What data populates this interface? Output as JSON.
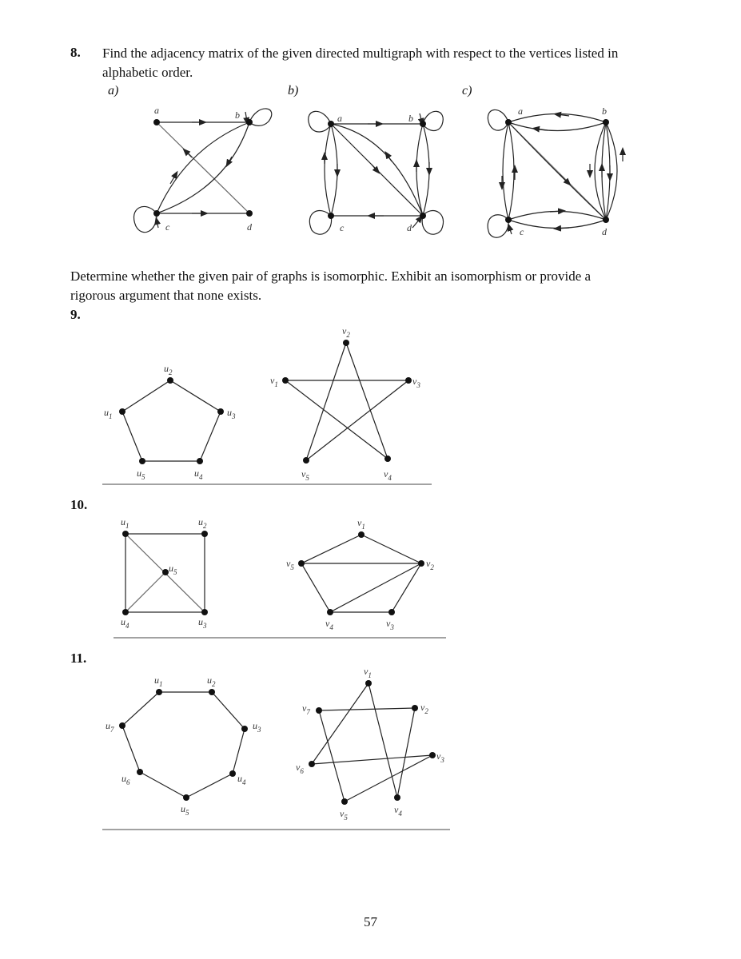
{
  "problems": {
    "p8": {
      "number": "8.",
      "line1": "Find the adjacency matrix of the given directed multigraph with respect to the vertices listed in",
      "line2": "alphabetic order.",
      "parts": [
        "a)",
        "b)",
        "c)"
      ],
      "vertices": [
        "a",
        "b",
        "c",
        "d"
      ]
    },
    "instruction": {
      "line1": "Determine whether the given pair of graphs is isomorphic. Exhibit an isomorphism or provide a",
      "line2": "rigorous argument that none exists."
    },
    "p9": {
      "number": "9.",
      "u": [
        "u1",
        "u2",
        "u3",
        "u4",
        "u5"
      ],
      "v": [
        "v1",
        "v2",
        "v3",
        "v4",
        "v5"
      ]
    },
    "p10": {
      "number": "10.",
      "u": [
        "u1",
        "u2",
        "u3",
        "u4",
        "u5"
      ],
      "v": [
        "v1",
        "v2",
        "v3",
        "v4",
        "v5"
      ]
    },
    "p11": {
      "number": "11.",
      "u": [
        "u1",
        "u2",
        "u3",
        "u4",
        "u5",
        "u6",
        "u7"
      ],
      "v": [
        "v1",
        "v2",
        "v3",
        "v4",
        "v5",
        "v6",
        "v7"
      ]
    }
  },
  "page_number": "57"
}
